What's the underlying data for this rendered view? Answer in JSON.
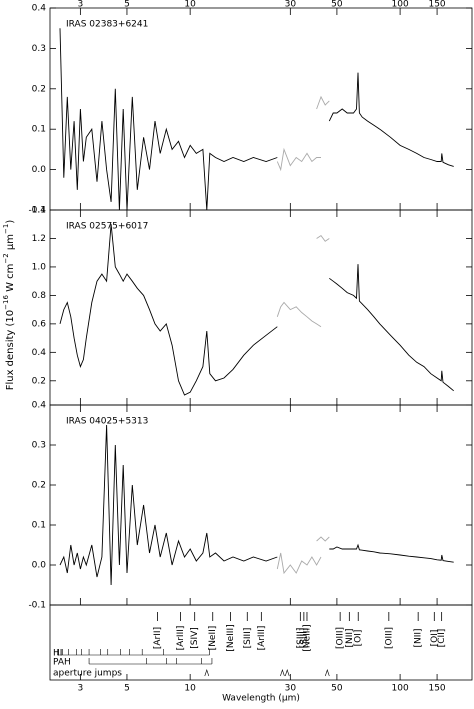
{
  "chart_data": [
    {
      "type": "line",
      "title": "IRAS 02383+6241",
      "xlim": [
        2.15,
        220
      ],
      "xticks": [
        3,
        5,
        10,
        30,
        50,
        100,
        150
      ],
      "log_x": true,
      "ylim": [
        -0.1,
        0.4
      ],
      "yticks": [
        -0.1,
        {
          "value": 0,
          "label": "0.0"
        },
        0.1,
        0.2,
        0.3,
        0.4
      ],
      "series": [
        {
          "color": "#000000",
          "x": [
            2.4,
            2.5,
            2.6,
            2.7,
            2.8,
            2.9,
            3.0,
            3.1,
            3.2,
            3.4,
            3.6,
            3.8,
            4.0,
            4.2,
            4.4,
            4.6,
            4.8,
            5.0,
            5.3,
            5.6,
            6.0,
            6.4,
            6.8,
            7.2,
            7.7,
            8.2,
            8.8,
            9.4,
            10,
            10.7,
            11.5,
            12.0,
            12.4,
            13.2,
            14.5,
            16,
            18,
            20,
            23,
            26
          ],
          "values": [
            0.35,
            -0.02,
            0.18,
            0.0,
            0.12,
            -0.05,
            0.15,
            0.02,
            0.08,
            0.1,
            -0.03,
            0.12,
            0.0,
            -0.08,
            0.2,
            -0.1,
            0.15,
            -0.1,
            0.18,
            -0.05,
            0.08,
            0.0,
            0.12,
            0.04,
            0.1,
            0.05,
            0.07,
            0.03,
            0.06,
            0.04,
            0.05,
            -0.1,
            0.04,
            0.03,
            0.02,
            0.03,
            0.02,
            0.03,
            0.02,
            0.03
          ]
        },
        {
          "color": "#aaaaaa",
          "x": [
            26,
            27,
            28,
            30,
            32,
            34,
            36,
            38,
            40,
            42
          ],
          "values": [
            0.02,
            0.0,
            0.05,
            0.01,
            0.03,
            0.02,
            0.04,
            0.02,
            0.03,
            0.03
          ]
        },
        {
          "color": "#aaaaaa",
          "x": [
            40,
            42,
            44,
            46
          ],
          "values": [
            0.15,
            0.18,
            0.16,
            0.17
          ]
        },
        {
          "color": "#000000",
          "x": [
            46,
            48,
            50,
            53,
            56,
            60,
            62,
            63,
            64,
            66,
            70,
            75,
            80,
            90,
            100,
            110,
            120,
            130,
            140,
            150,
            157,
            158,
            160,
            170,
            180
          ],
          "values": [
            0.12,
            0.14,
            0.14,
            0.15,
            0.14,
            0.14,
            0.15,
            0.24,
            0.14,
            0.13,
            0.12,
            0.11,
            0.1,
            0.08,
            0.06,
            0.05,
            0.04,
            0.03,
            0.025,
            0.02,
            0.02,
            0.04,
            0.018,
            0.012,
            0.008
          ]
        }
      ]
    },
    {
      "type": "line",
      "title": "IRAS 02575+6017",
      "xlim": [
        2.15,
        220
      ],
      "xticks": [
        3,
        5,
        10,
        30,
        50,
        100,
        150
      ],
      "log_x": true,
      "ylim": [
        0.03,
        1.4
      ],
      "yticks": [
        0.2,
        0.4,
        0.6,
        0.8,
        {
          "value": 1,
          "label": "1.0"
        },
        1.2,
        1.4
      ],
      "series": [
        {
          "color": "#000000",
          "x": [
            2.4,
            2.5,
            2.6,
            2.7,
            2.8,
            2.9,
            3.0,
            3.1,
            3.2,
            3.4,
            3.6,
            3.8,
            4.0,
            4.2,
            4.4,
            4.6,
            4.8,
            5.0,
            5.3,
            5.6,
            6.0,
            6.4,
            6.8,
            7.2,
            7.7,
            8.2,
            8.8,
            9.4,
            10,
            10.7,
            11.5,
            12.0,
            12.4,
            13.2,
            14.5,
            16,
            18,
            20,
            23,
            26
          ],
          "values": [
            0.6,
            0.7,
            0.75,
            0.65,
            0.5,
            0.38,
            0.3,
            0.35,
            0.5,
            0.75,
            0.9,
            0.95,
            0.9,
            1.3,
            1.0,
            0.95,
            0.9,
            0.95,
            0.9,
            0.85,
            0.8,
            0.7,
            0.6,
            0.55,
            0.6,
            0.45,
            0.2,
            0.1,
            0.12,
            0.2,
            0.3,
            0.55,
            0.25,
            0.2,
            0.22,
            0.28,
            0.38,
            0.45,
            0.52,
            0.58
          ]
        },
        {
          "color": "#aaaaaa",
          "x": [
            26,
            27,
            28,
            30,
            32,
            34,
            36,
            38,
            40,
            42
          ],
          "values": [
            0.65,
            0.72,
            0.75,
            0.7,
            0.72,
            0.68,
            0.65,
            0.62,
            0.6,
            0.58
          ]
        },
        {
          "color": "#aaaaaa",
          "x": [
            40,
            42,
            44,
            46
          ],
          "values": [
            1.2,
            1.22,
            1.18,
            1.2
          ]
        },
        {
          "color": "#000000",
          "x": [
            46,
            48,
            50,
            53,
            56,
            60,
            62,
            63,
            64,
            66,
            70,
            75,
            80,
            90,
            100,
            110,
            120,
            130,
            140,
            150,
            157,
            158,
            160,
            170,
            180
          ],
          "values": [
            0.92,
            0.9,
            0.88,
            0.85,
            0.82,
            0.8,
            0.78,
            1.02,
            0.76,
            0.74,
            0.7,
            0.65,
            0.6,
            0.52,
            0.45,
            0.38,
            0.33,
            0.3,
            0.25,
            0.22,
            0.2,
            0.27,
            0.19,
            0.16,
            0.13
          ]
        }
      ]
    },
    {
      "type": "line",
      "title": "IRAS 04025+5313",
      "xlim": [
        2.15,
        220
      ],
      "xticks": [
        3,
        5,
        10,
        30,
        50,
        100,
        150
      ],
      "log_x": true,
      "ylim": [
        -0.1,
        0.4
      ],
      "yticks": [
        -0.1,
        {
          "value": 0,
          "label": "0.0"
        },
        0.1,
        0.2,
        0.3,
        0.4
      ],
      "series": [
        {
          "color": "#000000",
          "x": [
            2.4,
            2.5,
            2.6,
            2.7,
            2.8,
            2.9,
            3.0,
            3.1,
            3.2,
            3.4,
            3.6,
            3.8,
            4.0,
            4.2,
            4.4,
            4.6,
            4.8,
            5.0,
            5.3,
            5.6,
            6.0,
            6.4,
            6.8,
            7.2,
            7.7,
            8.2,
            8.8,
            9.4,
            10,
            10.7,
            11.5,
            12.0,
            12.4,
            13.2,
            14.5,
            16,
            18,
            20,
            23,
            26
          ],
          "values": [
            0.0,
            0.02,
            -0.02,
            0.05,
            0.0,
            0.03,
            -0.01,
            0.02,
            0.0,
            0.05,
            -0.03,
            0.02,
            0.35,
            -0.05,
            0.3,
            0.0,
            0.25,
            -0.02,
            0.2,
            0.05,
            0.15,
            0.03,
            0.1,
            0.02,
            0.08,
            0.0,
            0.06,
            0.02,
            0.04,
            0.01,
            0.03,
            0.08,
            0.02,
            0.03,
            0.01,
            0.02,
            0.01,
            0.02,
            0.01,
            0.02
          ]
        },
        {
          "color": "#aaaaaa",
          "x": [
            26,
            27,
            28,
            30,
            32,
            34,
            36,
            38,
            40,
            42
          ],
          "values": [
            -0.01,
            0.03,
            -0.02,
            0.0,
            -0.02,
            0.01,
            0.0,
            0.02,
            0.0,
            0.02
          ]
        },
        {
          "color": "#aaaaaa",
          "x": [
            40,
            42,
            44,
            46
          ],
          "values": [
            0.06,
            0.07,
            0.06,
            0.07
          ]
        },
        {
          "color": "#000000",
          "x": [
            46,
            48,
            50,
            53,
            56,
            60,
            62,
            63,
            64,
            66,
            70,
            75,
            80,
            90,
            100,
            110,
            120,
            130,
            140,
            150,
            157,
            158,
            160,
            170,
            180
          ],
          "values": [
            0.04,
            0.04,
            0.045,
            0.04,
            0.04,
            0.04,
            0.04,
            0.05,
            0.038,
            0.037,
            0.035,
            0.033,
            0.03,
            0.028,
            0.025,
            0.022,
            0.02,
            0.018,
            0.016,
            0.013,
            0.012,
            0.025,
            0.011,
            0.009,
            0.007
          ]
        }
      ]
    }
  ],
  "ylabel": [
    "Flux density (10",
    "−16",
    " W cm",
    "−2",
    " μm",
    "−1",
    ")"
  ],
  "xlabel": "Wavelength (μm)",
  "line_ids": [
    {
      "label": "[ArII]",
      "wavelength": 6.99
    },
    {
      "label": "[ArIII]",
      "wavelength": 8.99
    },
    {
      "label": "[SIV]",
      "wavelength": 10.51
    },
    {
      "label": "[NeII]",
      "wavelength": 12.81
    },
    {
      "label": "[NeIII]",
      "wavelength": 15.56
    },
    {
      "label": "[SIII]",
      "wavelength": 18.71
    },
    {
      "label": "[ArIII]",
      "wavelength": 21.83
    },
    {
      "label": "[SIII]",
      "wavelength": 33.48
    },
    {
      "label": "[SiII]",
      "wavelength": 34.8
    },
    {
      "label": "[NeIII]",
      "wavelength": 36.01
    },
    {
      "label": "[OIII]",
      "wavelength": 51.81
    },
    {
      "label": "[NII]",
      "wavelength": 57.3
    },
    {
      "label": "[OI]",
      "wavelength": 63.18
    },
    {
      "label": "[OIII]",
      "wavelength": 88.36
    },
    {
      "label": "[NII]",
      "wavelength": 121.9
    },
    {
      "label": "[OI]",
      "wavelength": 145.5
    },
    {
      "label": "[CII]",
      "wavelength": 157.7
    }
  ],
  "feature_rows": [
    {
      "label": "HI",
      "wavelengths": [
        2.33,
        2.47,
        2.63,
        2.87,
        3.04,
        3.3,
        3.74,
        4.05,
        4.65,
        5.13,
        5.91,
        7.46,
        12.37
      ]
    },
    {
      "label": "PAH",
      "wavelengths": [
        3.3,
        6.2,
        7.7,
        8.6,
        11.3,
        12.7
      ]
    },
    {
      "label": "aperture jumps",
      "wavelengths": [
        12,
        27.5,
        29,
        45
      ]
    }
  ]
}
